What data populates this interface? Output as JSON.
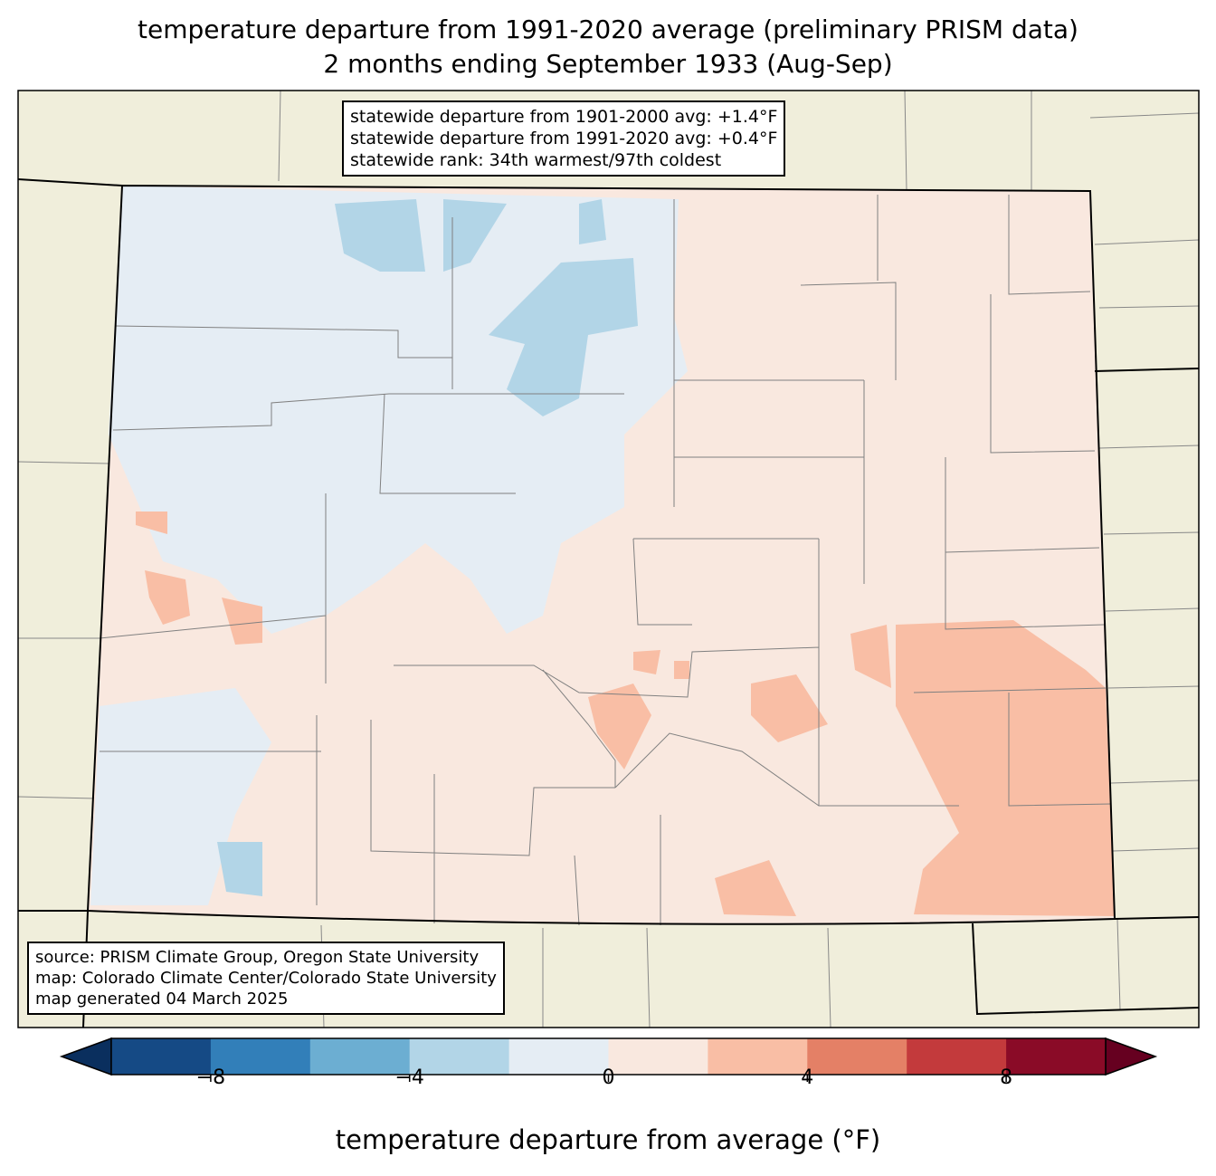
{
  "title": {
    "line1": "temperature departure from 1991-2020 average (preliminary PRISM data)",
    "line2": "2 months ending September 1933 (Aug-Sep)"
  },
  "stats": {
    "line1": "statewide departure from 1901-2000 avg: +1.4°F",
    "line2": "statewide departure from 1991-2020 avg: +0.4°F",
    "line3": "statewide rank: 34th warmest/97th coldest"
  },
  "source": {
    "line1": "source: PRISM Climate Group, Oregon State University",
    "line2": "map: Colorado Climate Center/Colorado State University",
    "line3": "map generated 04 March 2025"
  },
  "colorbar": {
    "label": "temperature departure from average (°F)",
    "bounds": [
      -10,
      -8,
      -6,
      -4,
      -2,
      0,
      2,
      4,
      6,
      8,
      10
    ],
    "colors": [
      "#154a85",
      "#327fb9",
      "#6caed2",
      "#b2d5e7",
      "#e5edf4",
      "#f9e8df",
      "#f9bea5",
      "#e48066",
      "#c33a3c",
      "#8a0b27"
    ],
    "under_color": "#0a2f5e",
    "over_color": "#660020",
    "ticks": [
      {
        "value": -8,
        "label": "−8"
      },
      {
        "value": -4,
        "label": "−4"
      },
      {
        "value": 0,
        "label": "0"
      },
      {
        "value": 4,
        "label": "4"
      },
      {
        "value": 8,
        "label": "8"
      }
    ]
  },
  "colors": {
    "land": "#f0eedb",
    "county_line": "#808080"
  }
}
